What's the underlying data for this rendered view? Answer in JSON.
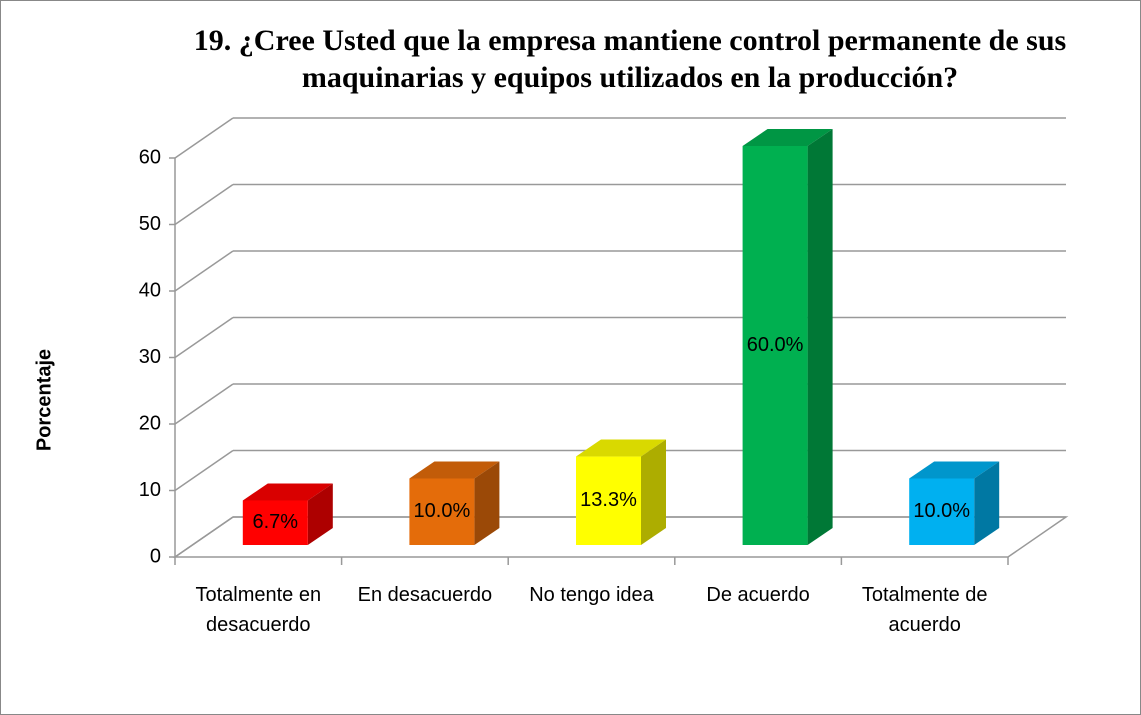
{
  "chart_data": {
    "type": "bar3d",
    "title": "19. ¿Cree Usted que la empresa mantiene control permanente de sus maquinarias y equipos utilizados en la producción?",
    "y_label": "Porcentaje",
    "categories": [
      "Totalmente en desacuerdo",
      "En desacuerdo",
      "No tengo idea",
      "De acuerdo",
      "Totalmente de acuerdo"
    ],
    "values": [
      6.7,
      10.0,
      13.3,
      60.0,
      10.0
    ],
    "value_labels": [
      "6.7%",
      "10.0%",
      "13.3%",
      "60.0%",
      "10.0%"
    ],
    "colors": [
      "#ff0000",
      "#e46c0a",
      "#ffff00",
      "#00b050",
      "#00b0f0"
    ],
    "ylim": [
      0,
      60
    ],
    "yticks": [
      0,
      10,
      20,
      30,
      40,
      50,
      60
    ],
    "grid": true
  }
}
